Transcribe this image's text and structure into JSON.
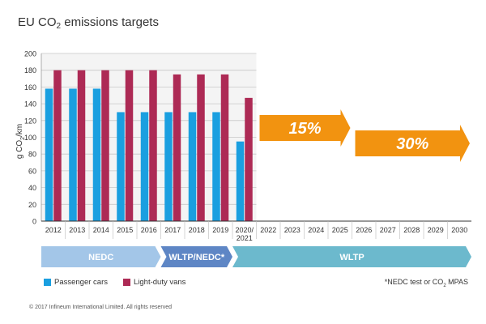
{
  "title": {
    "pre": "EU CO",
    "sub": "2",
    "post": " emissions targets"
  },
  "ylabel": {
    "pre": "g CO",
    "sub": "2",
    "post": "/km"
  },
  "colors": {
    "passenger": "#1a9fe0",
    "vans": "#ad2a55",
    "arrow": "#f29310",
    "nedc": "#a3c6e8",
    "wltp_nedc": "#5e86c5",
    "wltp": "#6cb9cd",
    "grid": "#c8c8c8",
    "plotbg": "#f4f4f4"
  },
  "chart_data": {
    "type": "bar",
    "categories": [
      "2012",
      "2013",
      "2014",
      "2015",
      "2016",
      "2017",
      "2018",
      "2019",
      "2020/\n2021",
      "2022",
      "2023",
      "2024",
      "2025",
      "2026",
      "2027",
      "2028",
      "2029",
      "2030"
    ],
    "series": [
      {
        "name": "Passenger cars",
        "values": [
          158,
          158,
          158,
          130,
          130,
          130,
          130,
          130,
          95,
          null,
          null,
          null,
          null,
          null,
          null,
          null,
          null,
          null
        ]
      },
      {
        "name": "Light-duty vans",
        "values": [
          180,
          180,
          180,
          180,
          180,
          175,
          175,
          175,
          147,
          null,
          null,
          null,
          null,
          null,
          null,
          null,
          null,
          null
        ]
      }
    ],
    "ylim": [
      0,
      200
    ],
    "yticks": [
      0,
      20,
      40,
      60,
      80,
      100,
      120,
      140,
      160,
      180,
      200
    ],
    "grid": true,
    "legend": "bottom-left",
    "annotations": [
      {
        "text": "15%",
        "from": "2022",
        "to": "2025"
      },
      {
        "text": "30%",
        "from": "2026",
        "to": "2030"
      }
    ]
  },
  "phases": [
    {
      "label": "NEDC",
      "from": "2012",
      "to": "2016",
      "color": "#a3c6e8"
    },
    {
      "label": "WLTP/NEDC*",
      "from": "2017",
      "to": "2019",
      "color": "#5e86c5"
    },
    {
      "label": "WLTP",
      "from": "2020/\n2021",
      "to": "2030",
      "color": "#6cb9cd"
    }
  ],
  "legend": {
    "passenger": "Passenger cars",
    "vans": "Light-duty vans"
  },
  "footnote": {
    "pre": "*NEDC test or CO",
    "sub": "2",
    "post": " MPAS"
  },
  "copyright": "© 2017 Infineum International Limited. All rights reserved"
}
